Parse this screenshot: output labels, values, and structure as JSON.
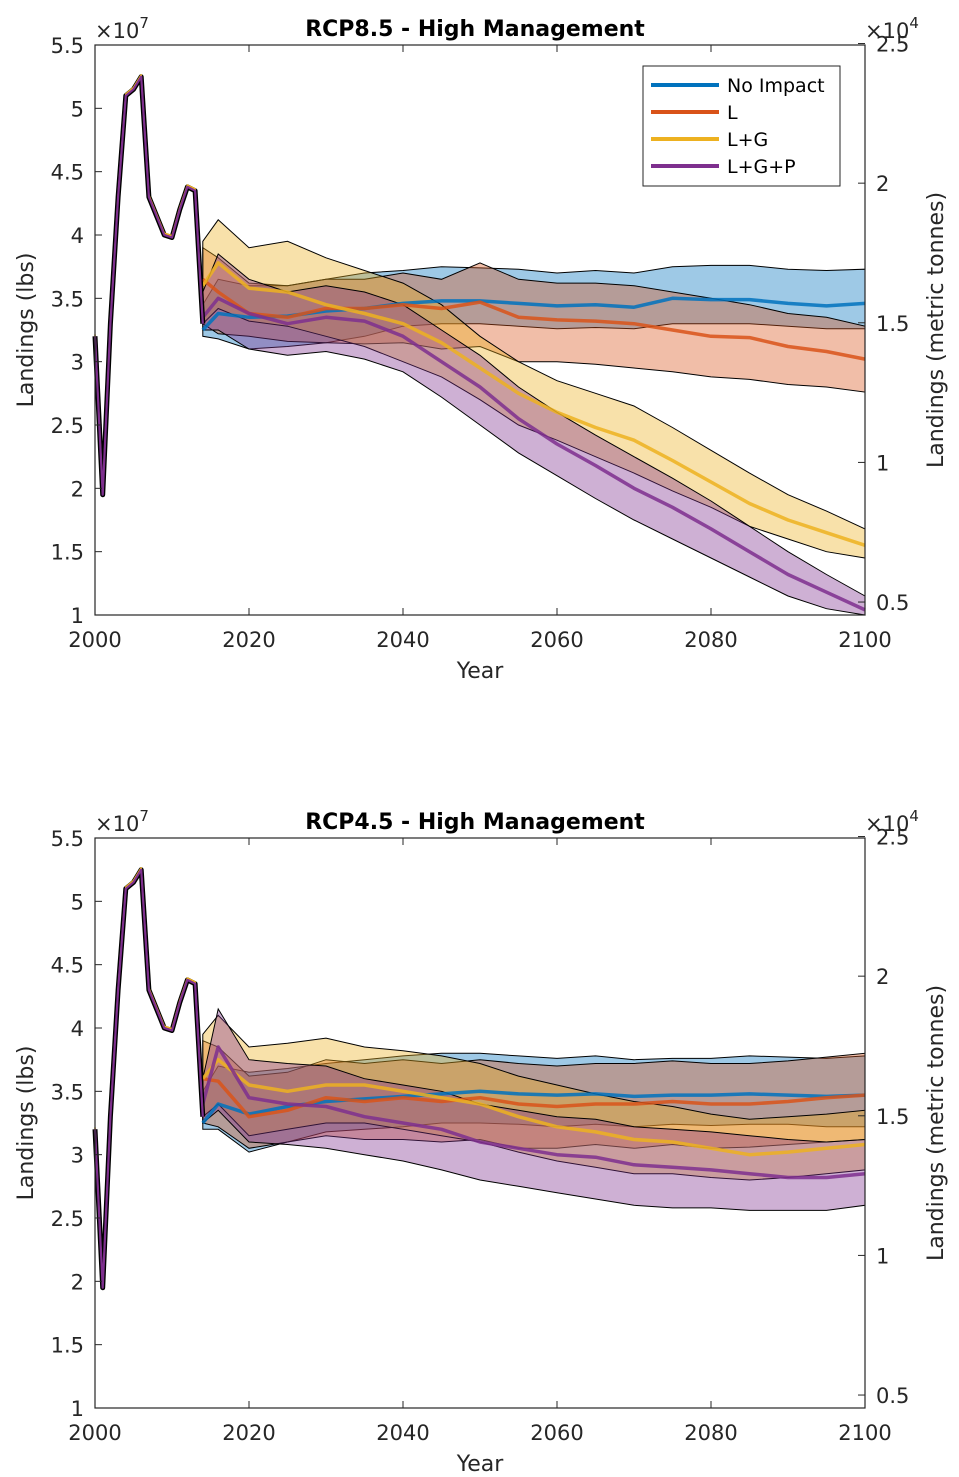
{
  "chart_data": [
    {
      "type": "line",
      "title": "RCP8.5 - High Management",
      "xlabel": "Year",
      "ylabel": "Landings (lbs)",
      "ylabel_right": "Landings (metric tonnes)",
      "xlim": [
        2000,
        2100
      ],
      "ylim": [
        1,
        5.5
      ],
      "ylim_right": [
        0.45359,
        2.49475
      ],
      "y_exponent": "×10^7",
      "y_exponent_base": "×10",
      "y_exponent_power": "7",
      "y_right_exponent": "×10^4",
      "y_right_exponent_base": "×10",
      "y_right_exponent_power": "4",
      "x_ticks": [
        "2000",
        "2020",
        "2040",
        "2060",
        "2080",
        "2100"
      ],
      "y_ticks": [
        "1",
        "1.5",
        "2",
        "2.5",
        "3",
        "3.5",
        "4",
        "4.5",
        "5",
        "5.5"
      ],
      "y_right_ticks": [
        "0.5",
        "1",
        "1.5",
        "2",
        "2.5"
      ],
      "grid": false,
      "legend_position": "top-right",
      "historical": {
        "x": [
          2000,
          2001,
          2002,
          2003,
          2004,
          2005,
          2006,
          2007,
          2008,
          2009,
          2010,
          2011,
          2012,
          2013,
          2014
        ],
        "y": [
          3.2,
          1.95,
          3.3,
          4.3,
          5.1,
          5.15,
          5.25,
          4.3,
          4.15,
          4.0,
          3.98,
          4.2,
          4.38,
          4.35,
          3.3
        ]
      },
      "series": [
        {
          "name": "No Impact",
          "color": "#0072BD",
          "x": [
            2014,
            2016,
            2020,
            2025,
            2030,
            2035,
            2040,
            2045,
            2050,
            2055,
            2060,
            2065,
            2070,
            2075,
            2080,
            2085,
            2090,
            2095,
            2100
          ],
          "mean": [
            3.25,
            3.38,
            3.35,
            3.36,
            3.4,
            3.42,
            3.46,
            3.48,
            3.48,
            3.46,
            3.44,
            3.45,
            3.43,
            3.5,
            3.49,
            3.49,
            3.46,
            3.44,
            3.46
          ],
          "lower": [
            3.2,
            3.18,
            3.1,
            3.12,
            3.15,
            3.2,
            3.28,
            3.3,
            3.3,
            3.28,
            3.26,
            3.27,
            3.26,
            3.3,
            3.3,
            3.3,
            3.28,
            3.26,
            3.26
          ],
          "upper": [
            3.45,
            3.65,
            3.6,
            3.6,
            3.65,
            3.7,
            3.72,
            3.75,
            3.74,
            3.73,
            3.7,
            3.72,
            3.7,
            3.75,
            3.76,
            3.76,
            3.73,
            3.72,
            3.73
          ]
        },
        {
          "name": "L",
          "color": "#D95319",
          "x": [
            2014,
            2016,
            2020,
            2025,
            2030,
            2035,
            2040,
            2045,
            2050,
            2055,
            2060,
            2065,
            2070,
            2075,
            2080,
            2085,
            2090,
            2095,
            2100
          ],
          "mean": [
            3.65,
            3.55,
            3.38,
            3.35,
            3.42,
            3.42,
            3.45,
            3.42,
            3.47,
            3.35,
            3.33,
            3.32,
            3.3,
            3.25,
            3.2,
            3.19,
            3.12,
            3.08,
            3.02
          ],
          "lower": [
            3.3,
            3.22,
            3.2,
            3.16,
            3.15,
            3.14,
            3.15,
            3.1,
            3.12,
            3.0,
            3.0,
            2.98,
            2.95,
            2.92,
            2.88,
            2.86,
            2.82,
            2.8,
            2.76
          ],
          "upper": [
            3.9,
            3.82,
            3.62,
            3.6,
            3.65,
            3.65,
            3.7,
            3.65,
            3.78,
            3.65,
            3.62,
            3.62,
            3.6,
            3.55,
            3.5,
            3.45,
            3.38,
            3.35,
            3.28
          ]
        },
        {
          "name": "L+G",
          "color": "#EDB120",
          "x": [
            2014,
            2016,
            2020,
            2025,
            2030,
            2035,
            2040,
            2045,
            2050,
            2055,
            2060,
            2065,
            2070,
            2075,
            2080,
            2085,
            2090,
            2095,
            2100
          ],
          "mean": [
            3.6,
            3.78,
            3.58,
            3.55,
            3.45,
            3.38,
            3.3,
            3.15,
            2.95,
            2.75,
            2.6,
            2.48,
            2.38,
            2.22,
            2.05,
            1.88,
            1.75,
            1.65,
            1.55
          ],
          "lower": [
            3.3,
            3.42,
            3.32,
            3.28,
            3.2,
            3.12,
            3.0,
            2.88,
            2.7,
            2.5,
            2.38,
            2.25,
            2.12,
            1.98,
            1.85,
            1.7,
            1.6,
            1.5,
            1.45
          ],
          "upper": [
            3.95,
            4.12,
            3.9,
            3.95,
            3.82,
            3.72,
            3.62,
            3.45,
            3.2,
            3.0,
            2.85,
            2.75,
            2.65,
            2.48,
            2.3,
            2.12,
            1.95,
            1.82,
            1.68
          ]
        },
        {
          "name": "L+G+P",
          "color": "#7E2F8E",
          "x": [
            2014,
            2016,
            2020,
            2025,
            2030,
            2035,
            2040,
            2045,
            2050,
            2055,
            2060,
            2065,
            2070,
            2075,
            2080,
            2085,
            2090,
            2095,
            2100
          ],
          "mean": [
            3.35,
            3.5,
            3.38,
            3.3,
            3.35,
            3.32,
            3.2,
            3.0,
            2.8,
            2.55,
            2.35,
            2.18,
            2.0,
            1.85,
            1.68,
            1.5,
            1.32,
            1.18,
            1.04
          ],
          "lower": [
            3.25,
            3.25,
            3.1,
            3.05,
            3.08,
            3.02,
            2.92,
            2.72,
            2.5,
            2.28,
            2.1,
            1.92,
            1.75,
            1.6,
            1.45,
            1.3,
            1.15,
            1.05,
            1.0
          ],
          "upper": [
            3.55,
            3.85,
            3.65,
            3.55,
            3.6,
            3.55,
            3.45,
            3.25,
            3.05,
            2.8,
            2.6,
            2.42,
            2.25,
            2.08,
            1.9,
            1.7,
            1.5,
            1.32,
            1.15
          ]
        }
      ]
    },
    {
      "type": "line",
      "title": "RCP4.5 - High Management",
      "xlabel": "Year",
      "ylabel": "Landings (lbs)",
      "ylabel_right": "Landings (metric tonnes)",
      "xlim": [
        2000,
        2100
      ],
      "ylim": [
        1,
        5.5
      ],
      "ylim_right": [
        0.45359,
        2.49475
      ],
      "y_exponent": "×10^7",
      "y_exponent_base": "×10",
      "y_exponent_power": "7",
      "y_right_exponent": "×10^4",
      "y_right_exponent_base": "×10",
      "y_right_exponent_power": "4",
      "x_ticks": [
        "2000",
        "2020",
        "2040",
        "2060",
        "2080",
        "2100"
      ],
      "y_ticks": [
        "1",
        "1.5",
        "2",
        "2.5",
        "3",
        "3.5",
        "4",
        "4.5",
        "5",
        "5.5"
      ],
      "y_right_ticks": [
        "0.5",
        "1",
        "1.5",
        "2",
        "2.5"
      ],
      "grid": false,
      "historical": {
        "x": [
          2000,
          2001,
          2002,
          2003,
          2004,
          2005,
          2006,
          2007,
          2008,
          2009,
          2010,
          2011,
          2012,
          2013,
          2014
        ],
        "y": [
          3.2,
          1.95,
          3.3,
          4.3,
          5.1,
          5.15,
          5.25,
          4.3,
          4.15,
          4.0,
          3.98,
          4.2,
          4.38,
          4.35,
          3.3
        ]
      },
      "series": [
        {
          "name": "No Impact",
          "color": "#0072BD",
          "x": [
            2014,
            2016,
            2020,
            2025,
            2030,
            2035,
            2040,
            2045,
            2050,
            2055,
            2060,
            2065,
            2070,
            2075,
            2080,
            2085,
            2090,
            2095,
            2100
          ],
          "mean": [
            3.25,
            3.4,
            3.32,
            3.38,
            3.42,
            3.44,
            3.46,
            3.48,
            3.5,
            3.48,
            3.47,
            3.48,
            3.46,
            3.47,
            3.47,
            3.48,
            3.47,
            3.46,
            3.47
          ],
          "lower": [
            3.2,
            3.2,
            3.02,
            3.1,
            3.18,
            3.2,
            3.22,
            3.25,
            3.25,
            3.24,
            3.22,
            3.24,
            3.22,
            3.24,
            3.23,
            3.24,
            3.24,
            3.22,
            3.22
          ],
          "upper": [
            3.5,
            3.7,
            3.65,
            3.68,
            3.72,
            3.75,
            3.78,
            3.8,
            3.8,
            3.78,
            3.76,
            3.78,
            3.75,
            3.76,
            3.76,
            3.78,
            3.77,
            3.76,
            3.78
          ]
        },
        {
          "name": "L",
          "color": "#D95319",
          "x": [
            2014,
            2016,
            2020,
            2025,
            2030,
            2035,
            2040,
            2045,
            2050,
            2055,
            2060,
            2065,
            2070,
            2075,
            2080,
            2085,
            2090,
            2095,
            2100
          ],
          "mean": [
            3.6,
            3.58,
            3.3,
            3.35,
            3.45,
            3.42,
            3.45,
            3.42,
            3.45,
            3.4,
            3.38,
            3.4,
            3.4,
            3.42,
            3.4,
            3.4,
            3.42,
            3.45,
            3.47
          ],
          "lower": [
            3.25,
            3.22,
            3.05,
            3.1,
            3.15,
            3.12,
            3.12,
            3.1,
            3.12,
            3.05,
            3.05,
            3.08,
            3.05,
            3.08,
            3.05,
            3.06,
            3.08,
            3.1,
            3.12
          ],
          "upper": [
            3.9,
            3.85,
            3.62,
            3.65,
            3.75,
            3.72,
            3.75,
            3.72,
            3.75,
            3.72,
            3.7,
            3.72,
            3.72,
            3.74,
            3.72,
            3.72,
            3.74,
            3.77,
            3.8
          ]
        },
        {
          "name": "L+G",
          "color": "#EDB120",
          "x": [
            2014,
            2016,
            2020,
            2025,
            2030,
            2035,
            2040,
            2045,
            2050,
            2055,
            2060,
            2065,
            2070,
            2075,
            2080,
            2085,
            2090,
            2095,
            2100
          ],
          "mean": [
            3.6,
            3.75,
            3.55,
            3.5,
            3.55,
            3.55,
            3.5,
            3.45,
            3.4,
            3.3,
            3.22,
            3.18,
            3.12,
            3.1,
            3.05,
            3.0,
            3.02,
            3.05,
            3.08
          ],
          "lower": [
            3.3,
            3.4,
            3.15,
            3.2,
            3.25,
            3.25,
            3.2,
            3.15,
            3.1,
            3.02,
            2.95,
            2.9,
            2.85,
            2.85,
            2.82,
            2.8,
            2.82,
            2.85,
            2.88
          ],
          "upper": [
            3.95,
            4.1,
            3.85,
            3.88,
            3.92,
            3.85,
            3.82,
            3.78,
            3.72,
            3.62,
            3.55,
            3.48,
            3.42,
            3.38,
            3.32,
            3.28,
            3.3,
            3.32,
            3.35
          ]
        },
        {
          "name": "L+G+P",
          "color": "#7E2F8E",
          "x": [
            2014,
            2016,
            2020,
            2025,
            2030,
            2035,
            2040,
            2045,
            2050,
            2055,
            2060,
            2065,
            2070,
            2075,
            2080,
            2085,
            2090,
            2095,
            2100
          ],
          "mean": [
            3.4,
            3.85,
            3.45,
            3.4,
            3.38,
            3.3,
            3.25,
            3.2,
            3.1,
            3.05,
            3.0,
            2.98,
            2.92,
            2.9,
            2.88,
            2.85,
            2.82,
            2.82,
            2.85
          ],
          "lower": [
            3.25,
            3.35,
            3.1,
            3.08,
            3.05,
            3.0,
            2.95,
            2.88,
            2.8,
            2.75,
            2.7,
            2.65,
            2.6,
            2.58,
            2.58,
            2.56,
            2.56,
            2.56,
            2.6
          ],
          "upper": [
            3.6,
            4.15,
            3.75,
            3.72,
            3.7,
            3.6,
            3.55,
            3.5,
            3.4,
            3.35,
            3.3,
            3.28,
            3.22,
            3.2,
            3.18,
            3.15,
            3.12,
            3.1,
            3.12
          ]
        }
      ]
    }
  ]
}
